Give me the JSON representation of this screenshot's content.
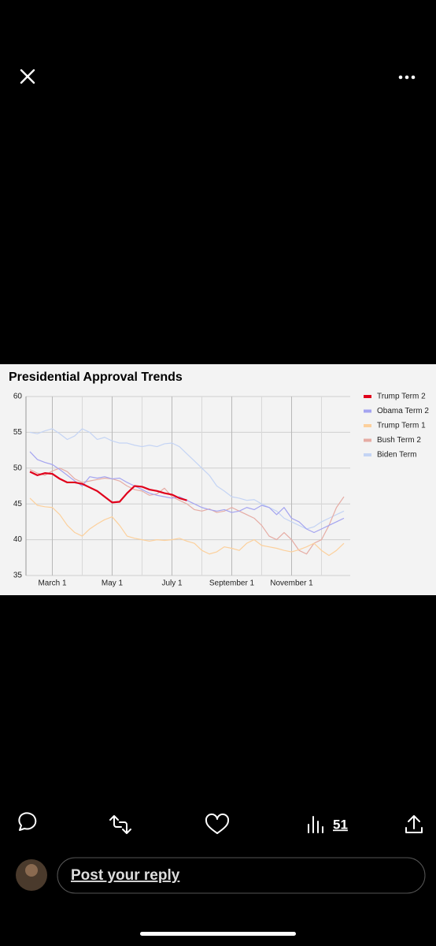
{
  "chart_data": {
    "type": "line",
    "title": "Presidential Approval Trends",
    "categories": [
      null,
      null,
      null,
      "March 1",
      null,
      null,
      null,
      null,
      null,
      null,
      null,
      "May 1",
      null,
      null,
      null,
      null,
      null,
      null,
      null,
      "July 1",
      null,
      null,
      null,
      null,
      null,
      null,
      null,
      "September 1",
      null,
      null,
      null,
      null,
      null,
      null,
      null,
      "November 1",
      null,
      null,
      null,
      null,
      null,
      null,
      null
    ],
    "series": [
      {
        "name": "Trump Term 2",
        "color": "#e0001b",
        "values": [
          49.5,
          49,
          49.3,
          49.2,
          48.5,
          48,
          48,
          47.8,
          47.3,
          46.8,
          46,
          45.2,
          45.3,
          46.5,
          47.5,
          47.4,
          47,
          46.8,
          46.5,
          46.3,
          45.8,
          45.5,
          null,
          null,
          null,
          null,
          null,
          null,
          null,
          null,
          null,
          null,
          null,
          null,
          null,
          null,
          null,
          null,
          null,
          null,
          null,
          null,
          null
        ]
      },
      {
        "name": "Obama Term 2",
        "color": "#a4a4f0",
        "values": [
          52.3,
          51.2,
          50.8,
          50.5,
          49.8,
          49,
          48.2,
          47.5,
          48.8,
          48.6,
          48.8,
          48.5,
          48.6,
          48,
          47.5,
          47,
          46.5,
          46.2,
          46,
          45.8,
          46,
          45.5,
          45,
          44.5,
          44.2,
          44,
          44.2,
          43.8,
          44,
          44.5,
          44.2,
          44.8,
          44.5,
          43.5,
          44.5,
          43,
          42.5,
          41.5,
          41,
          41.5,
          42,
          42.5,
          43
        ]
      },
      {
        "name": "Trump Term 1",
        "color": "#fcd09c",
        "values": [
          45.8,
          44.8,
          44.6,
          44.5,
          43.5,
          42,
          41,
          40.5,
          41.5,
          42.2,
          42.8,
          43.2,
          42,
          40.5,
          40.2,
          40,
          39.8,
          40,
          39.9,
          40,
          40.2,
          39.8,
          39.5,
          38.5,
          38,
          38.3,
          39,
          38.8,
          38.5,
          39.5,
          40,
          39.2,
          39,
          38.8,
          38.5,
          38.3,
          38.6,
          39,
          39.5,
          38.5,
          37.8,
          38.5,
          39.5
        ]
      },
      {
        "name": "Bush Term 2",
        "color": "#e6aca4",
        "values": [
          49.8,
          49.3,
          49,
          49.6,
          50,
          49.5,
          48.5,
          48,
          48.2,
          48.4,
          48.6,
          48.5,
          48.2,
          47.5,
          47,
          46.8,
          46.2,
          46.4,
          47.2,
          46,
          45.5,
          45,
          44.2,
          44,
          44.3,
          43.8,
          44,
          44.5,
          44,
          43.5,
          43,
          42,
          40.5,
          40,
          41,
          40,
          38.5,
          38,
          39.5,
          40,
          42,
          44.5,
          46
        ]
      },
      {
        "name": "Biden Term",
        "color": "#c4d4f4",
        "values": [
          55,
          54.8,
          55.2,
          55.5,
          54.8,
          54,
          54.5,
          55.5,
          55,
          54,
          54.3,
          53.8,
          53.5,
          53.5,
          53.2,
          53,
          53.2,
          53,
          53.4,
          53.5,
          53,
          52,
          51,
          50,
          49,
          47.5,
          46.8,
          46,
          45.8,
          45.5,
          45.6,
          45,
          44.5,
          44,
          43,
          42.5,
          42,
          41.5,
          41.8,
          42.5,
          43,
          43.5,
          44
        ]
      }
    ],
    "ylim": [
      35,
      60
    ],
    "yticks": [
      35,
      40,
      45,
      50,
      55,
      60
    ],
    "grid": true,
    "legend": "right"
  },
  "post": {
    "views": 51
  },
  "reply": {
    "placeholder": "Post your reply"
  }
}
